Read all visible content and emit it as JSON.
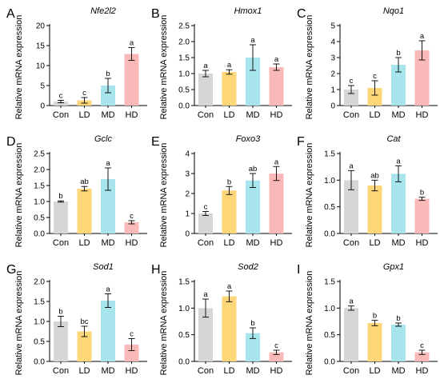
{
  "chart_data": [
    {
      "type": "bar",
      "letter": "A",
      "title": "Nfe2l2",
      "ylabel": "Relative mRNA expression",
      "categories": [
        "Con",
        "LD",
        "MD",
        "HD"
      ],
      "values": [
        1.0,
        1.3,
        5.0,
        12.9
      ],
      "errors": [
        0.3,
        0.7,
        1.8,
        1.6
      ],
      "significance": [
        "c",
        "c",
        "b",
        "a"
      ],
      "ylim": [
        0,
        20
      ],
      "yticks": [
        "0",
        "5",
        "10",
        "15",
        "20"
      ]
    },
    {
      "type": "bar",
      "letter": "B",
      "title": "Hmox1",
      "ylabel": "Relative mRNA expression",
      "categories": [
        "Con",
        "LD",
        "MD",
        "HD"
      ],
      "values": [
        1.0,
        1.05,
        1.5,
        1.2
      ],
      "errors": [
        0.1,
        0.07,
        0.4,
        0.1
      ],
      "significance": [
        "a",
        "a",
        "a",
        "a"
      ],
      "ylim": [
        0,
        2.5
      ],
      "yticks": [
        "0.0",
        "0.5",
        "1.0",
        "1.5",
        "2.0",
        "2.5"
      ]
    },
    {
      "type": "bar",
      "letter": "C",
      "title": "Nqo1",
      "ylabel": "Relative mRNA expression",
      "categories": [
        "Con",
        "LD",
        "MD",
        "HD"
      ],
      "values": [
        1.0,
        1.1,
        2.55,
        3.45
      ],
      "errors": [
        0.25,
        0.45,
        0.45,
        0.6
      ],
      "significance": [
        "c",
        "c",
        "b",
        "a"
      ],
      "ylim": [
        0,
        5
      ],
      "yticks": [
        "0",
        "1",
        "2",
        "3",
        "4",
        "5"
      ]
    },
    {
      "type": "bar",
      "letter": "D",
      "title": "Gclc",
      "ylabel": "Relative mRNA expression",
      "categories": [
        "Con",
        "LD",
        "MD",
        "HD"
      ],
      "values": [
        1.0,
        1.4,
        1.7,
        0.35
      ],
      "errors": [
        0.02,
        0.07,
        0.35,
        0.05
      ],
      "significance": [
        "b",
        "ab",
        "a",
        "c"
      ],
      "ylim": [
        0,
        2.5
      ],
      "yticks": [
        "0.0",
        "0.5",
        "1.0",
        "1.5",
        "2.0",
        "2.5"
      ]
    },
    {
      "type": "bar",
      "letter": "E",
      "title": "Foxo3",
      "ylabel": "Relative mRNA expression",
      "categories": [
        "Con",
        "LD",
        "MD",
        "HD"
      ],
      "values": [
        1.0,
        2.15,
        2.65,
        3.0
      ],
      "errors": [
        0.1,
        0.2,
        0.35,
        0.35
      ],
      "significance": [
        "c",
        "b",
        "ab",
        "a"
      ],
      "ylim": [
        0,
        4
      ],
      "yticks": [
        "0",
        "1",
        "2",
        "3",
        "4"
      ]
    },
    {
      "type": "bar",
      "letter": "F",
      "title": "Cat",
      "ylabel": "Relative mRNA expression",
      "categories": [
        "Con",
        "LD",
        "MD",
        "HD"
      ],
      "values": [
        1.0,
        0.9,
        1.12,
        0.65
      ],
      "errors": [
        0.18,
        0.1,
        0.15,
        0.03
      ],
      "significance": [
        "a",
        "ab",
        "a",
        "b"
      ],
      "ylim": [
        0,
        1.5
      ],
      "yticks": [
        "0.0",
        "0.5",
        "1.0",
        "1.5"
      ]
    },
    {
      "type": "bar",
      "letter": "G",
      "title": "Sod1",
      "ylabel": "Relative mRNA expression",
      "categories": [
        "Con",
        "LD",
        "MD",
        "HD"
      ],
      "values": [
        1.0,
        0.75,
        1.52,
        0.42
      ],
      "errors": [
        0.13,
        0.13,
        0.17,
        0.15
      ],
      "significance": [
        "b",
        "bc",
        "a",
        "c"
      ],
      "ylim": [
        0,
        2.0
      ],
      "yticks": [
        "0.0",
        "0.5",
        "1.0",
        "1.5",
        "2.0"
      ]
    },
    {
      "type": "bar",
      "letter": "H",
      "title": "Sod2",
      "ylabel": "Relative mRNA expression",
      "categories": [
        "Con",
        "LD",
        "MD",
        "HD"
      ],
      "values": [
        1.0,
        1.22,
        0.53,
        0.17
      ],
      "errors": [
        0.17,
        0.1,
        0.1,
        0.04
      ],
      "significance": [
        "a",
        "a",
        "b",
        "c"
      ],
      "ylim": [
        0,
        1.5
      ],
      "yticks": [
        "0.0",
        "0.5",
        "1.0",
        "1.5"
      ]
    },
    {
      "type": "bar",
      "letter": "I",
      "title": "Gpx1",
      "ylabel": "Relative mRNA expression",
      "categories": [
        "Con",
        "LD",
        "MD",
        "HD"
      ],
      "values": [
        1.0,
        0.72,
        0.69,
        0.17
      ],
      "errors": [
        0.04,
        0.05,
        0.03,
        0.04
      ],
      "significance": [
        "a",
        "b",
        "b",
        "c"
      ],
      "ylim": [
        0,
        1.5
      ],
      "yticks": [
        "0.0",
        "0.5",
        "1.0",
        "1.5"
      ]
    }
  ],
  "colors": [
    "#d6d6d6",
    "#fdd678",
    "#a8e4ec",
    "#f9b9b9"
  ]
}
